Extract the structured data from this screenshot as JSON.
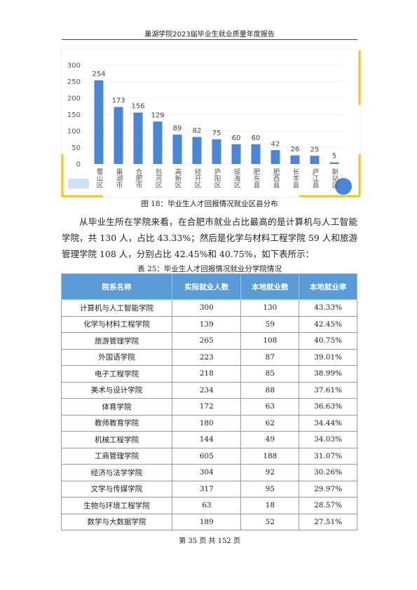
{
  "header": {
    "title": "巢湖学院2023届毕业生就业质量年度报告"
  },
  "chart_data": {
    "type": "bar",
    "caption": "图 18：毕业生人才回报情况就业区县分布",
    "categories": [
      "蜀山区",
      "巢湖市",
      "合肥市",
      "包河区",
      "高新区",
      "经开区",
      "庐阳区",
      "瑶海区",
      "肥东县",
      "肥西县",
      "长丰县",
      "庐江县",
      "新站区"
    ],
    "values": [
      254,
      173,
      156,
      129,
      89,
      82,
      75,
      60,
      60,
      42,
      26,
      25,
      5
    ],
    "color": "#4a86d8",
    "ylim": [
      0,
      300
    ],
    "yticks": [
      0,
      50,
      100,
      150,
      200,
      250,
      300
    ],
    "grid": true
  },
  "paragraph": "从毕业生所在学院来看，在合肥市就业占比最高的是计算机与人工智能学院，共 130 人，占比 43.33%；然后是化学与材料工程学院 59 人和旅游管理学院 108 人，分别占比 42.45%和 40.75%，如下表所示：",
  "table": {
    "caption": "表 25：毕业生人才回报情况就业分学院情况",
    "header": [
      "院系名称",
      "实际就业人数",
      "本地就业数",
      "本地就业率"
    ],
    "rows": [
      [
        "计算机与人工智能学院",
        "300",
        "130",
        "43.33%"
      ],
      [
        "化学与材料工程学院",
        "139",
        "59",
        "42.45%"
      ],
      [
        "旅游管理学院",
        "265",
        "108",
        "40.75%"
      ],
      [
        "外国语学院",
        "223",
        "87",
        "39.01%"
      ],
      [
        "电子工程学院",
        "218",
        "85",
        "38.99%"
      ],
      [
        "美术与设计学院",
        "234",
        "88",
        "37.61%"
      ],
      [
        "体育学院",
        "172",
        "63",
        "36.63%"
      ],
      [
        "教师教育学院",
        "180",
        "62",
        "34.44%"
      ],
      [
        "机械工程学院",
        "144",
        "49",
        "34.03%"
      ],
      [
        "工商管理学院",
        "605",
        "188",
        "31.07%"
      ],
      [
        "经济与法学学院",
        "304",
        "92",
        "30.26%"
      ],
      [
        "文学与传媒学院",
        "317",
        "95",
        "29.97%"
      ],
      [
        "生物与环境工程学院",
        "63",
        "18",
        "28.57%"
      ],
      [
        "数学与大数据学院",
        "189",
        "52",
        "27.51%"
      ]
    ]
  },
  "footer": "第 35 页 共 152 页"
}
